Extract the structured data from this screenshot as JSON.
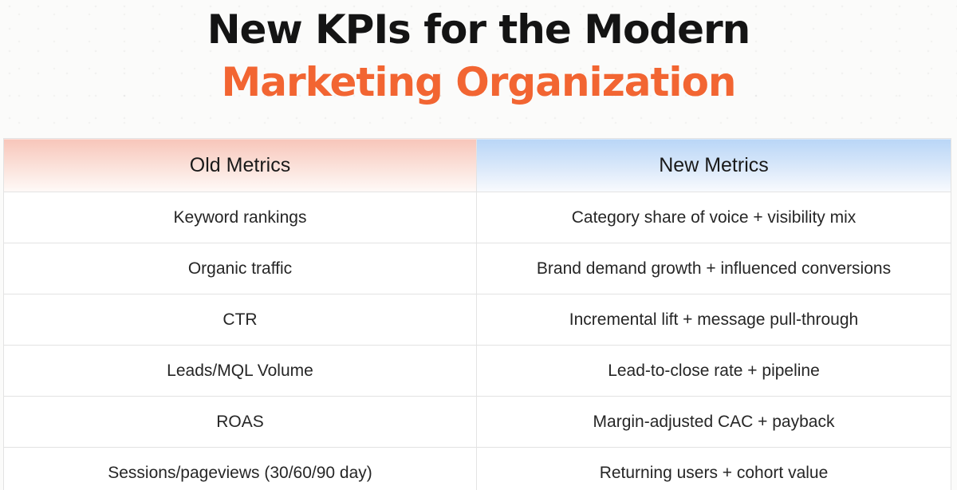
{
  "title": {
    "line1": "New KPIs for the Modern",
    "line2": "Marketing Organization"
  },
  "colors": {
    "title_dark": "#141414",
    "title_accent": "#f26532",
    "old_header_tint": "#f8c6ba",
    "new_header_tint": "#b9d6f7"
  },
  "table": {
    "headers": [
      "Old Metrics",
      "New Metrics"
    ],
    "rows": [
      [
        "Keyword rankings",
        "Category share of voice + visibility mix"
      ],
      [
        "Organic traffic",
        "Brand demand growth + influenced conversions"
      ],
      [
        "CTR",
        "Incremental lift + message pull-through"
      ],
      [
        "Leads/MQL Volume",
        "Lead-to-close rate + pipeline"
      ],
      [
        "ROAS",
        "Margin-adjusted CAC + payback"
      ],
      [
        "Sessions/pageviews (30/60/90 day)",
        "Returning users + cohort value"
      ]
    ]
  }
}
